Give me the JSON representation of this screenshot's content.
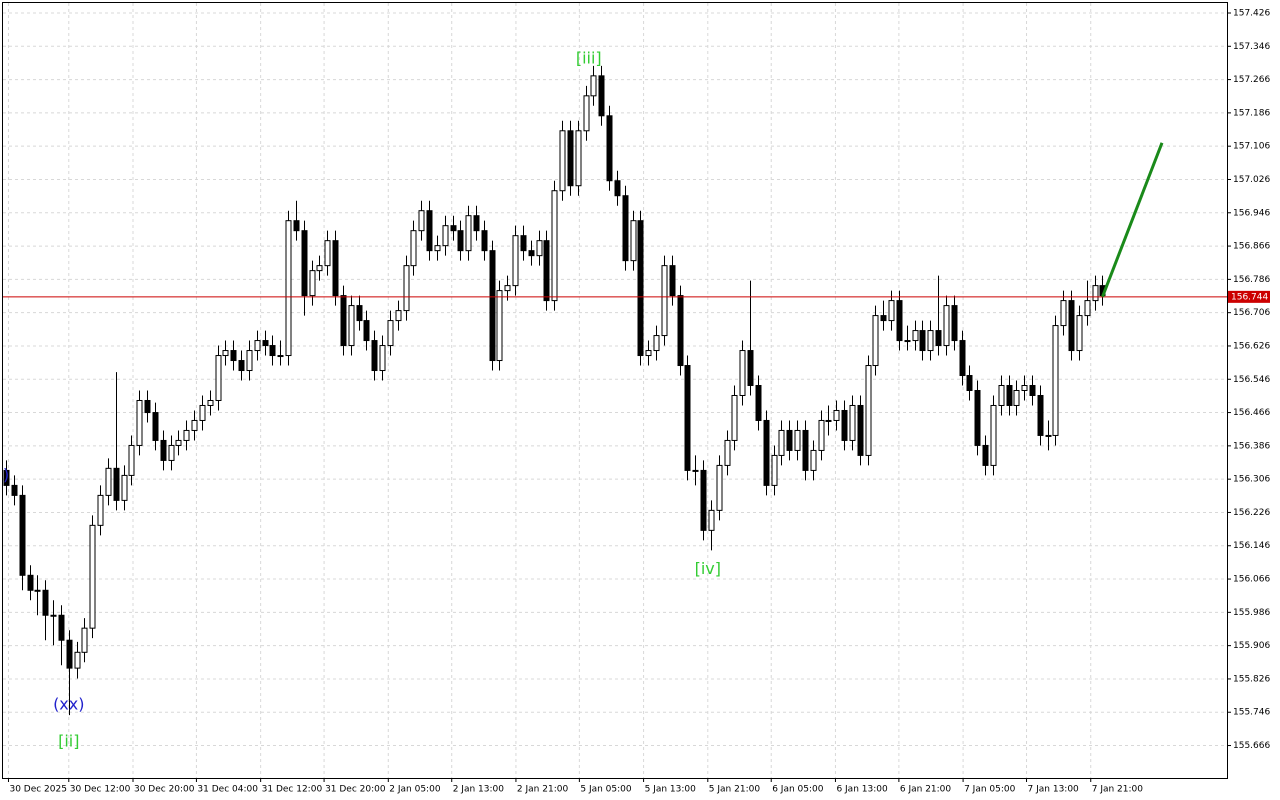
{
  "chart_data": {
    "type": "candlestick",
    "candles": [
      [
        156.327,
        156.351,
        156.267,
        156.291
      ],
      [
        156.291,
        156.315,
        156.243,
        156.267
      ],
      [
        156.267,
        156.291,
        156.039,
        156.075
      ],
      [
        156.075,
        156.099,
        156.015,
        156.039
      ],
      [
        156.039,
        156.075,
        155.979,
        156.039
      ],
      [
        156.039,
        156.063,
        155.919,
        155.979
      ],
      [
        155.979,
        156.015,
        155.907,
        155.979
      ],
      [
        155.979,
        156.003,
        155.859,
        155.919
      ],
      [
        155.919,
        155.943,
        155.739,
        155.852
      ],
      [
        155.852,
        155.915,
        155.827,
        155.89
      ],
      [
        155.89,
        155.972,
        155.866,
        155.948
      ],
      [
        155.948,
        156.219,
        155.924,
        156.195
      ],
      [
        156.195,
        156.291,
        156.171,
        156.267
      ],
      [
        156.267,
        156.356,
        156.243,
        156.332
      ],
      [
        156.332,
        156.563,
        156.231,
        156.255
      ],
      [
        156.255,
        156.339,
        156.231,
        156.315
      ],
      [
        156.315,
        156.411,
        156.291,
        156.387
      ],
      [
        156.387,
        156.519,
        156.363,
        156.495
      ],
      [
        156.495,
        156.519,
        156.442,
        156.466
      ],
      [
        156.466,
        156.49,
        156.375,
        156.399
      ],
      [
        156.399,
        156.423,
        156.327,
        156.351
      ],
      [
        156.351,
        156.411,
        156.327,
        156.387
      ],
      [
        156.387,
        156.423,
        156.363,
        156.399
      ],
      [
        156.399,
        156.447,
        156.375,
        156.423
      ],
      [
        156.423,
        156.471,
        156.399,
        156.447
      ],
      [
        156.447,
        156.507,
        156.423,
        156.483
      ],
      [
        156.483,
        156.519,
        156.459,
        156.495
      ],
      [
        156.495,
        156.627,
        156.471,
        156.603
      ],
      [
        156.603,
        156.639,
        156.579,
        156.615
      ],
      [
        156.615,
        156.639,
        156.567,
        156.591
      ],
      [
        156.591,
        156.615,
        156.543,
        156.567
      ],
      [
        156.567,
        156.639,
        156.543,
        156.615
      ],
      [
        156.615,
        156.663,
        156.591,
        156.639
      ],
      [
        156.639,
        156.663,
        156.603,
        156.627
      ],
      [
        156.627,
        156.651,
        156.579,
        156.603
      ],
      [
        156.603,
        156.639,
        156.579,
        156.603
      ],
      [
        156.603,
        156.951,
        156.579,
        156.927
      ],
      [
        156.927,
        156.975,
        156.879,
        156.903
      ],
      [
        156.903,
        156.927,
        156.699,
        156.747
      ],
      [
        156.747,
        156.831,
        156.723,
        156.807
      ],
      [
        156.807,
        156.843,
        156.783,
        156.819
      ],
      [
        156.819,
        156.903,
        156.795,
        156.879
      ],
      [
        156.879,
        156.903,
        156.723,
        156.747
      ],
      [
        156.747,
        156.771,
        156.603,
        156.627
      ],
      [
        156.627,
        156.747,
        156.603,
        156.723
      ],
      [
        156.723,
        156.747,
        156.663,
        156.687
      ],
      [
        156.687,
        156.711,
        156.615,
        156.639
      ],
      [
        156.639,
        156.663,
        156.543,
        156.567
      ],
      [
        156.567,
        156.651,
        156.543,
        156.627
      ],
      [
        156.627,
        156.711,
        156.603,
        156.687
      ],
      [
        156.687,
        156.735,
        156.663,
        156.711
      ],
      [
        156.711,
        156.843,
        156.687,
        156.819
      ],
      [
        156.819,
        156.927,
        156.795,
        156.903
      ],
      [
        156.903,
        156.975,
        156.879,
        156.951
      ],
      [
        156.951,
        156.975,
        156.831,
        156.855
      ],
      [
        156.855,
        156.891,
        156.831,
        156.867
      ],
      [
        156.867,
        156.939,
        156.843,
        156.915
      ],
      [
        156.915,
        156.939,
        156.879,
        156.903
      ],
      [
        156.903,
        156.927,
        156.831,
        156.855
      ],
      [
        156.855,
        156.963,
        156.831,
        156.939
      ],
      [
        156.939,
        156.963,
        156.879,
        156.903
      ],
      [
        156.903,
        156.927,
        156.831,
        156.855
      ],
      [
        156.855,
        156.879,
        156.567,
        156.591
      ],
      [
        156.591,
        156.783,
        156.567,
        156.759
      ],
      [
        156.759,
        156.795,
        156.735,
        156.771
      ],
      [
        156.771,
        156.915,
        156.747,
        156.891
      ],
      [
        156.891,
        156.915,
        156.831,
        156.855
      ],
      [
        156.855,
        156.879,
        156.819,
        156.843
      ],
      [
        156.843,
        156.903,
        156.819,
        156.879
      ],
      [
        156.879,
        156.903,
        156.711,
        156.735
      ],
      [
        156.735,
        157.023,
        156.711,
        156.999
      ],
      [
        156.999,
        157.167,
        156.975,
        157.143
      ],
      [
        157.143,
        157.167,
        156.987,
        157.011
      ],
      [
        157.011,
        157.167,
        156.987,
        157.143
      ],
      [
        157.143,
        157.251,
        157.119,
        157.227
      ],
      [
        157.227,
        157.299,
        157.203,
        157.275
      ],
      [
        157.275,
        157.299,
        157.155,
        157.179
      ],
      [
        157.179,
        157.203,
        156.999,
        157.023
      ],
      [
        157.023,
        157.047,
        156.963,
        156.987
      ],
      [
        156.987,
        157.011,
        156.807,
        156.831
      ],
      [
        156.831,
        156.951,
        156.807,
        156.927
      ],
      [
        156.927,
        156.951,
        156.579,
        156.603
      ],
      [
        156.603,
        156.639,
        156.579,
        156.615
      ],
      [
        156.615,
        156.675,
        156.591,
        156.651
      ],
      [
        156.651,
        156.843,
        156.627,
        156.819
      ],
      [
        156.819,
        156.843,
        156.723,
        156.747
      ],
      [
        156.747,
        156.771,
        156.555,
        156.579
      ],
      [
        156.579,
        156.603,
        156.303,
        156.327
      ],
      [
        156.327,
        156.363,
        156.291,
        156.327
      ],
      [
        156.327,
        156.351,
        156.159,
        156.183
      ],
      [
        156.183,
        156.255,
        156.135,
        156.231
      ],
      [
        156.231,
        156.363,
        156.207,
        156.339
      ],
      [
        156.339,
        156.423,
        156.315,
        156.399
      ],
      [
        156.399,
        156.531,
        156.375,
        156.507
      ],
      [
        156.507,
        156.639,
        156.483,
        156.615
      ],
      [
        156.615,
        156.783,
        156.507,
        156.531
      ],
      [
        156.531,
        156.555,
        156.423,
        156.447
      ],
      [
        156.447,
        156.471,
        156.267,
        156.291
      ],
      [
        156.291,
        156.387,
        156.267,
        156.363
      ],
      [
        156.363,
        156.447,
        156.339,
        156.423
      ],
      [
        156.423,
        156.447,
        156.351,
        156.375
      ],
      [
        156.375,
        156.447,
        156.351,
        156.423
      ],
      [
        156.423,
        156.447,
        156.303,
        156.327
      ],
      [
        156.327,
        156.399,
        156.303,
        156.375
      ],
      [
        156.375,
        156.471,
        156.351,
        156.447
      ],
      [
        156.447,
        156.483,
        156.411,
        156.447
      ],
      [
        156.447,
        156.495,
        156.423,
        156.471
      ],
      [
        156.471,
        156.495,
        156.375,
        156.399
      ],
      [
        156.399,
        156.507,
        156.375,
        156.483
      ],
      [
        156.483,
        156.507,
        156.339,
        156.363
      ],
      [
        156.363,
        156.603,
        156.339,
        156.579
      ],
      [
        156.579,
        156.723,
        156.555,
        156.699
      ],
      [
        156.699,
        156.735,
        156.663,
        156.687
      ],
      [
        156.687,
        156.759,
        156.663,
        156.735
      ],
      [
        156.735,
        156.759,
        156.615,
        156.639
      ],
      [
        156.639,
        156.675,
        156.615,
        156.639
      ],
      [
        156.639,
        156.687,
        156.615,
        156.663
      ],
      [
        156.663,
        156.687,
        156.591,
        156.615
      ],
      [
        156.615,
        156.687,
        156.591,
        156.663
      ],
      [
        156.663,
        156.795,
        156.603,
        156.627
      ],
      [
        156.627,
        156.747,
        156.603,
        156.723
      ],
      [
        156.723,
        156.747,
        156.615,
        156.639
      ],
      [
        156.639,
        156.663,
        156.531,
        156.555
      ],
      [
        156.555,
        156.579,
        156.495,
        156.519
      ],
      [
        156.519,
        156.543,
        156.363,
        156.387
      ],
      [
        156.387,
        156.411,
        156.315,
        156.339
      ],
      [
        156.339,
        156.507,
        156.315,
        156.483
      ],
      [
        156.483,
        156.555,
        156.459,
        156.531
      ],
      [
        156.531,
        156.555,
        156.459,
        156.483
      ],
      [
        156.483,
        156.543,
        156.459,
        156.519
      ],
      [
        156.519,
        156.555,
        156.495,
        156.531
      ],
      [
        156.531,
        156.555,
        156.483,
        156.507
      ],
      [
        156.507,
        156.531,
        156.387,
        156.411
      ],
      [
        156.411,
        156.447,
        156.375,
        156.411
      ],
      [
        156.411,
        156.699,
        156.387,
        156.675
      ],
      [
        156.675,
        156.759,
        156.651,
        156.735
      ],
      [
        156.735,
        156.759,
        156.591,
        156.615
      ],
      [
        156.615,
        156.723,
        156.591,
        156.699
      ],
      [
        156.699,
        156.783,
        156.675,
        156.735
      ],
      [
        156.735,
        156.795,
        156.711,
        156.771
      ],
      [
        156.771,
        156.795,
        156.723,
        156.747
      ]
    ],
    "xlim": [
      -0.4,
      155.9
    ],
    "ylim": [
      155.588,
      157.45
    ],
    "yticks": [
      157.426,
      157.346,
      157.266,
      157.186,
      157.106,
      157.026,
      156.946,
      156.866,
      156.786,
      156.706,
      156.626,
      156.546,
      156.466,
      156.386,
      156.306,
      156.226,
      156.146,
      156.066,
      155.986,
      155.906,
      155.826,
      155.746,
      155.666
    ],
    "xticks": [
      {
        "value": 0.3,
        "label": "30 Dec 2025"
      },
      {
        "value": 8.0,
        "label": "30 Dec 12:00"
      },
      {
        "value": 16.2,
        "label": "30 Dec 20:00"
      },
      {
        "value": 24.3,
        "label": "31 Dec 04:00"
      },
      {
        "value": 32.5,
        "label": "31 Dec 12:00"
      },
      {
        "value": 40.6,
        "label": "31 Dec 20:00"
      },
      {
        "value": 48.8,
        "label": "2 Jan 05:00"
      },
      {
        "value": 56.9,
        "label": "2 Jan 13:00"
      },
      {
        "value": 65.1,
        "label": "2 Jan 21:00"
      },
      {
        "value": 73.2,
        "label": "5 Jan 05:00"
      },
      {
        "value": 81.4,
        "label": "5 Jan 13:00"
      },
      {
        "value": 89.6,
        "label": "5 Jan 21:00"
      },
      {
        "value": 97.7,
        "label": "6 Jan 05:00"
      },
      {
        "value": 105.9,
        "label": "6 Jan 13:00"
      },
      {
        "value": 114.0,
        "label": "6 Jan 21:00"
      },
      {
        "value": 122.2,
        "label": "7 Jan 05:00"
      },
      {
        "value": 130.3,
        "label": "7 Jan 13:00"
      },
      {
        "value": 138.5,
        "label": "7 Jan 21:00"
      }
    ],
    "grid": true,
    "price_line": {
      "value": 156.744,
      "color": "#cc0000"
    },
    "forecast": {
      "x": [
        140,
        147.6
      ],
      "values": [
        156.744,
        157.114
      ],
      "color": "#1a8a1a"
    },
    "annotations": [
      {
        "text": "[ii]",
        "index": 8,
        "value": 155.674,
        "color": "#33cc33"
      },
      {
        "text": "(xx)",
        "index": 8,
        "value": 155.763,
        "color": "#2222cc"
      },
      {
        "text": "[iii]",
        "index": 74.4,
        "value": 157.316,
        "color": "#33cc33"
      },
      {
        "text": "[iv]",
        "index": 89.6,
        "value": 156.089,
        "color": "#33cc33"
      },
      {
        "text": ")",
        "index": 0,
        "value": 156.315,
        "color": "#2222cc"
      }
    ]
  }
}
